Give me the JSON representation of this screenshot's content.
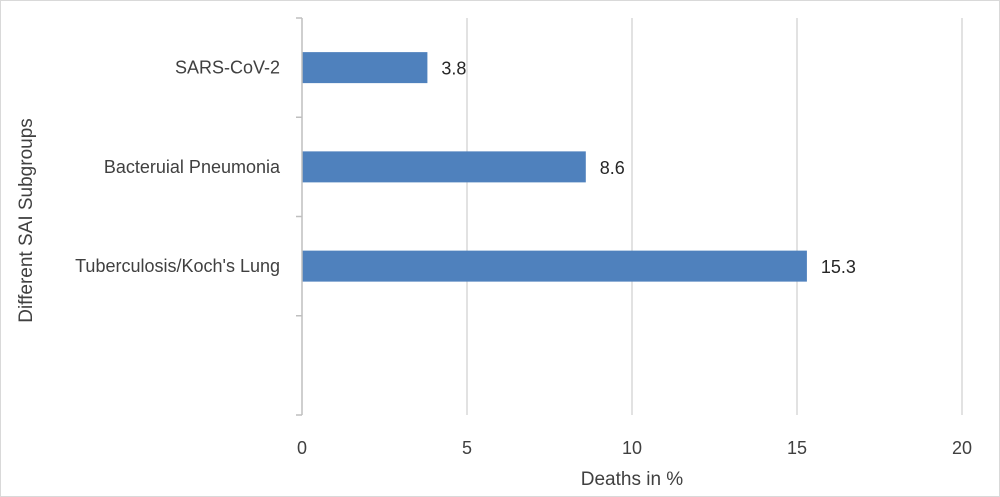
{
  "chart_data": {
    "type": "bar",
    "orientation": "horizontal",
    "categories": [
      "SARS-CoV-2",
      "Bacteruial Pneumonia ",
      "Tuberculosis/Koch's Lung",
      ""
    ],
    "series": [
      {
        "values": [
          3.8,
          8.6,
          15.3,
          null
        ]
      }
    ],
    "data_labels": [
      "3.8",
      "8.6",
      "15.3",
      ""
    ],
    "xlabel": "Deaths in %",
    "ylabel": "Different SAI Subgroups",
    "xlim": [
      0,
      20
    ],
    "xticks": [
      0,
      5,
      10,
      15,
      20
    ],
    "grid": "vertical",
    "legend": "none",
    "colors": {
      "bar": "#4F81BD",
      "grid": "#D9D9D9",
      "axis": "#BFBFBF",
      "border": "#D9D9D9"
    }
  }
}
